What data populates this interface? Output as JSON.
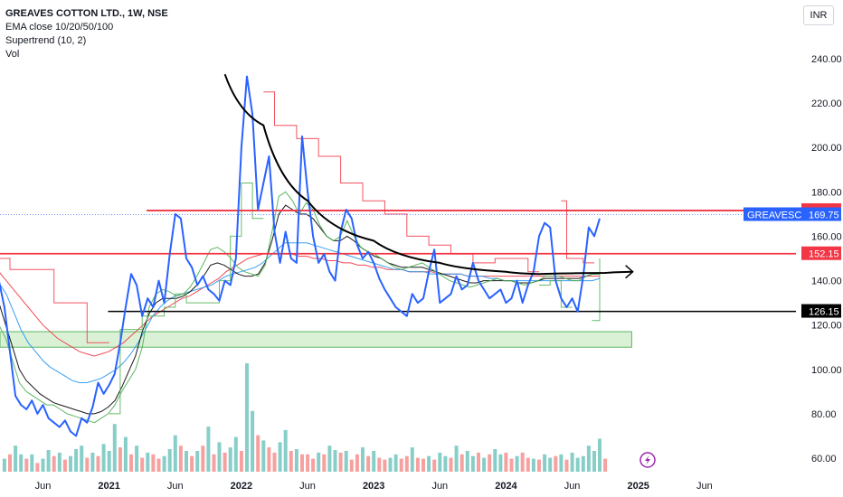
{
  "header": {
    "title": "GREAVES COTTON LTD., 1W, NSE",
    "indicators": [
      "EMA close 10/20/50/100",
      "Supertrend (10, 2)",
      "Vol"
    ],
    "currency": "INR"
  },
  "colors": {
    "price": "#2962ff",
    "ema10": "#4caf50",
    "ema20": "#000000",
    "ema50": "#2196f3",
    "ema100": "#f23645",
    "supertrend_up": "#4caf50",
    "supertrend_down": "#f23645",
    "resistance": "#f23645",
    "support": "#000000",
    "zone_fill": "#d7f0d2",
    "zone_stroke": "#4caf50",
    "vol_up": "#26a69a",
    "vol_down": "#ef5350",
    "symbol_tag": "#2962ff"
  },
  "chart_data": {
    "type": "line",
    "title": "GREAVES COTTON LTD., 1W, NSE",
    "ylim": [
      55,
      248
    ],
    "y_ticks": [
      60,
      80,
      100,
      120,
      140,
      160,
      180,
      200,
      220,
      240
    ],
    "y_tick_labels": [
      "60.00",
      "80.00",
      "100.00",
      "120.00",
      "140.00",
      "160.00",
      "180.00",
      "200.00",
      "220.00",
      "240.00"
    ],
    "x_tick_labels": [
      "Jun",
      "2021",
      "Jun",
      "2022",
      "Jun",
      "2023",
      "Jun",
      "2024",
      "Jun",
      "2025",
      "Jun"
    ],
    "x_tick_bold": [
      false,
      true,
      false,
      true,
      false,
      true,
      false,
      true,
      false,
      true,
      false
    ],
    "x_tick_index": [
      0,
      6,
      12,
      18,
      24,
      30,
      36,
      42,
      48,
      54,
      60
    ],
    "x_index_range": [
      -3.9,
      68.3
    ],
    "price_series": {
      "name": "GREAVESCOT",
      "x": [
        -4,
        -3.5,
        -3,
        -2.5,
        -2,
        -1.5,
        -1,
        -0.5,
        0,
        0.5,
        1,
        1.5,
        2,
        2.5,
        3,
        3.5,
        4,
        4.5,
        5,
        5.5,
        6,
        6.5,
        7,
        7.5,
        8,
        8.5,
        9,
        9.5,
        10,
        10.5,
        11,
        11.5,
        12,
        12.5,
        13,
        13.5,
        14,
        14.5,
        15,
        15.5,
        16,
        16.5,
        17,
        17.5,
        18,
        18.5,
        19,
        19.5,
        20,
        20.5,
        21,
        21.5,
        22,
        22.5,
        23,
        23.5,
        24,
        24.5,
        25,
        25.5,
        26,
        26.5,
        27,
        27.5,
        28,
        28.5,
        29,
        29.5,
        30,
        30.5,
        31,
        31.5,
        32,
        32.5,
        33,
        33.5,
        34,
        34.5,
        35,
        35.5,
        36,
        36.5,
        37,
        37.5,
        38,
        38.5,
        39,
        39.5,
        40,
        40.5,
        41,
        41.5,
        42,
        42.5,
        43,
        43.5,
        44,
        44.5,
        45,
        45.5,
        46,
        46.5,
        47,
        47.5,
        48,
        48.5,
        49,
        49.5,
        50,
        50.5
      ],
      "values": [
        140,
        128,
        108,
        88,
        84,
        82,
        86,
        80,
        84,
        78,
        76,
        74,
        77,
        72,
        70,
        78,
        76,
        83,
        94,
        89,
        93,
        98,
        112,
        128,
        143,
        138,
        124,
        132,
        128,
        140,
        130,
        152,
        170,
        168,
        150,
        146,
        138,
        142,
        136,
        134,
        131,
        140,
        138,
        150,
        200,
        232,
        215,
        172,
        184,
        196,
        162,
        148,
        162,
        150,
        148,
        205,
        180,
        160,
        148,
        152,
        144,
        140,
        162,
        172,
        168,
        156,
        150,
        153,
        148,
        141,
        136,
        132,
        128,
        126,
        124,
        134,
        130,
        132,
        144,
        154,
        130,
        132,
        134,
        142,
        136,
        138,
        148,
        140,
        136,
        132,
        134,
        136,
        130,
        132,
        140,
        130,
        138,
        144,
        160,
        166,
        164,
        140,
        132,
        128,
        132,
        126,
        142,
        164,
        160,
        168
      ],
      "last_value": 169.75
    },
    "ema10": [
      120,
      114,
      104,
      94,
      90,
      88,
      86,
      84,
      84,
      82,
      80,
      79,
      78,
      77,
      76,
      78,
      80,
      84,
      90,
      95,
      100,
      110,
      128,
      134,
      136,
      135,
      133,
      134,
      137,
      142,
      148,
      154,
      155,
      153,
      150,
      146,
      144,
      143,
      142,
      147,
      162,
      178,
      180,
      176,
      170,
      175,
      172,
      165,
      160,
      158,
      160,
      167,
      160,
      155,
      153,
      152,
      150,
      148,
      146,
      145,
      146,
      147,
      148,
      146,
      144,
      142,
      140,
      139,
      138,
      137,
      138,
      139,
      140,
      141,
      140,
      140,
      139,
      138,
      139,
      140,
      142,
      142,
      142,
      141,
      140,
      140,
      142,
      143,
      143
    ],
    "ema20": [
      130,
      120,
      110,
      100,
      95,
      92,
      89,
      87,
      85,
      84,
      83,
      82,
      81,
      80,
      80,
      81,
      83,
      86,
      92,
      99,
      106,
      117,
      125,
      130,
      132,
      132,
      132,
      133,
      135,
      138,
      142,
      147,
      148,
      147,
      145,
      143,
      142,
      142,
      143,
      148,
      158,
      170,
      174,
      172,
      170,
      170,
      168,
      164,
      160,
      158,
      158,
      160,
      158,
      155,
      153,
      151,
      150,
      148,
      147,
      146,
      146,
      146,
      146,
      145,
      144,
      143,
      142,
      141,
      140,
      139,
      139,
      140,
      140,
      140,
      140,
      140,
      139,
      139,
      139,
      140,
      141,
      141,
      141,
      141,
      141,
      141,
      142,
      143,
      143
    ],
    "ema50": [
      139,
      134,
      126,
      118,
      112,
      108,
      104,
      101,
      99,
      97,
      95,
      94,
      94,
      95,
      96,
      98,
      100,
      103,
      107,
      112,
      118,
      124,
      128,
      131,
      133,
      134,
      135,
      136,
      137,
      138,
      140,
      142,
      143,
      144,
      145,
      146,
      148,
      151,
      154,
      157,
      157,
      157,
      157,
      156,
      155,
      154,
      153,
      152,
      151,
      150,
      149,
      148,
      147,
      146,
      145,
      145,
      144,
      144,
      144,
      143,
      143,
      143,
      143,
      143,
      142,
      142,
      142,
      141,
      141,
      140,
      140,
      140,
      140,
      140,
      140,
      140,
      140,
      140,
      140,
      140,
      140,
      140,
      141
    ],
    "ema100": [
      144,
      140,
      136,
      132,
      128,
      124,
      120,
      117,
      114,
      112,
      110,
      108,
      107,
      106,
      107,
      108,
      110,
      112,
      115,
      118,
      121,
      124,
      126,
      128,
      130,
      132,
      133,
      135,
      137,
      139,
      141,
      144,
      146,
      148,
      150,
      151,
      152,
      152,
      152,
      152,
      152,
      151,
      151,
      150,
      150,
      149,
      149,
      148,
      148,
      147,
      147,
      146,
      146,
      145,
      145,
      145,
      144,
      144,
      144,
      144,
      143,
      143,
      143,
      143,
      142,
      142,
      142,
      142,
      142,
      142,
      142,
      142,
      142,
      142,
      142,
      142,
      142,
      142,
      142,
      142,
      142,
      142,
      142
    ],
    "supertrend": [
      {
        "direction": "down",
        "points": [
          [
            -4,
            150
          ],
          [
            -3,
            150
          ],
          [
            -3,
            145
          ],
          [
            1,
            145
          ],
          [
            1,
            130
          ],
          [
            4,
            130
          ],
          [
            4,
            112
          ],
          [
            6,
            112
          ]
        ]
      },
      {
        "direction": "up",
        "points": [
          [
            6,
            80
          ],
          [
            7,
            80
          ],
          [
            7,
            118
          ],
          [
            9,
            118
          ],
          [
            9,
            124
          ],
          [
            11,
            124
          ],
          [
            11,
            128
          ],
          [
            12,
            128
          ],
          [
            12,
            134
          ],
          [
            13,
            134
          ],
          [
            13,
            130
          ],
          [
            16,
            130
          ],
          [
            16,
            140
          ],
          [
            17,
            140
          ],
          [
            17,
            160
          ],
          [
            18,
            160
          ],
          [
            18,
            184
          ],
          [
            19,
            184
          ],
          [
            19,
            168
          ],
          [
            20,
            168
          ]
        ]
      },
      {
        "direction": "down",
        "points": [
          [
            20,
            225
          ],
          [
            21,
            225
          ],
          [
            21,
            210
          ],
          [
            23,
            210
          ],
          [
            23,
            204
          ],
          [
            25,
            204
          ],
          [
            25,
            196
          ],
          [
            27,
            196
          ],
          [
            27,
            184
          ],
          [
            29,
            184
          ],
          [
            29,
            176
          ],
          [
            31,
            176
          ],
          [
            31,
            170
          ],
          [
            33,
            170
          ],
          [
            33,
            160
          ],
          [
            35,
            160
          ],
          [
            35,
            156
          ],
          [
            37,
            156
          ],
          [
            37,
            152
          ],
          [
            39,
            152
          ],
          [
            39,
            148
          ],
          [
            41,
            148
          ],
          [
            41,
            150
          ],
          [
            44,
            150
          ],
          [
            44,
            144
          ],
          [
            45,
            144
          ]
        ]
      },
      {
        "direction": "up",
        "points": [
          [
            45,
            138
          ],
          [
            46,
            138
          ],
          [
            46,
            140
          ],
          [
            47,
            140
          ],
          [
            47,
            128
          ],
          [
            48,
            128
          ]
        ]
      },
      {
        "direction": "down",
        "points": [
          [
            47,
            176
          ],
          [
            47.5,
            176
          ],
          [
            47.5,
            150
          ],
          [
            49,
            150
          ],
          [
            49,
            148
          ],
          [
            50,
            148
          ]
        ]
      },
      {
        "direction": "up",
        "points": [
          [
            49.8,
            122
          ],
          [
            50.5,
            122
          ],
          [
            50.5,
            150
          ]
        ]
      }
    ],
    "trendline": {
      "points": [
        [
          16.5,
          233
        ],
        [
          20,
          210
        ],
        [
          24,
          176
        ],
        [
          30,
          158
        ],
        [
          36,
          148
        ],
        [
          42,
          144
        ],
        [
          45,
          143
        ],
        [
          51,
          143.5
        ],
        [
          53.5,
          144
        ]
      ]
    },
    "support_polyline": [
      [
        42,
        144
      ],
      [
        53.5,
        144
      ]
    ],
    "levels": [
      {
        "name": "resistance",
        "value": 171.6,
        "label": "171.60",
        "x_start": 9.4
      },
      {
        "name": "mid",
        "value": 152.15,
        "label": "152.15",
        "x_start": -3.9
      },
      {
        "name": "support",
        "value": 126.15,
        "label": "126.15",
        "x_start": 5.9
      }
    ],
    "zone": {
      "low": 110,
      "high": 117,
      "x_start": -3.9,
      "x_end": 53.4
    },
    "volume": {
      "x_start": -3.5,
      "x_step": 0.5,
      "values": [
        1.5,
        2,
        3,
        2,
        1.5,
        2,
        1,
        1.5,
        2.5,
        1.8,
        2.2,
        1.4,
        1.8,
        2.6,
        3,
        1.6,
        2.2,
        1.8,
        3.2,
        2.4,
        5.5,
        2.8,
        4,
        2,
        3,
        1.6,
        2.2,
        2,
        1.5,
        1.8,
        2.6,
        4.2,
        3,
        2.4,
        1.8,
        2.4,
        3,
        5.2,
        2,
        3.4,
        2.2,
        2.8,
        4,
        2.4,
        12.5,
        7,
        4.2,
        3.6,
        2.8,
        2.2,
        3.4,
        4.8,
        2.4,
        2.6,
        2,
        2,
        1.5,
        2.2,
        2,
        3,
        2.5,
        2.2,
        2.4,
        1.4,
        2,
        2.8,
        1.8,
        2.4,
        1.6,
        1.4,
        1.6,
        2,
        1.5,
        1.8,
        2.8,
        1.6,
        1.5,
        1.8,
        1.4,
        2.2,
        1.8,
        1.6,
        3,
        2,
        2.4,
        1.8,
        2.2,
        1.6,
        2,
        2.6,
        2,
        2.2,
        1.5,
        1.8,
        2.2,
        1.6,
        1.5,
        1.4,
        2,
        1.6,
        1.8,
        2,
        1.4,
        2.2,
        1.6,
        1.8,
        3,
        2.4,
        3.8,
        1.5
      ],
      "up": [
        1,
        0,
        1,
        1,
        0,
        1,
        0,
        1,
        1,
        0,
        1,
        0,
        1,
        1,
        1,
        0,
        1,
        0,
        1,
        1,
        1,
        0,
        1,
        0,
        1,
        0,
        1,
        0,
        0,
        1,
        1,
        1,
        0,
        1,
        0,
        1,
        0,
        1,
        0,
        1,
        0,
        1,
        1,
        0,
        1,
        1,
        0,
        1,
        0,
        0,
        1,
        1,
        0,
        1,
        0,
        0,
        0,
        1,
        0,
        1,
        1,
        0,
        1,
        0,
        0,
        1,
        0,
        1,
        0,
        0,
        1,
        1,
        0,
        0,
        1,
        0,
        0,
        1,
        0,
        1,
        1,
        0,
        1,
        0,
        1,
        1,
        0,
        1,
        0,
        1,
        1,
        0,
        0,
        1,
        0,
        0,
        1,
        0,
        1,
        1,
        0,
        1,
        0,
        1,
        1,
        1,
        1,
        1,
        1,
        0
      ]
    }
  },
  "price_tags": [
    {
      "label": "171.60",
      "color": "#f23645",
      "value": 171.6
    },
    {
      "label": "GREAVESCOT",
      "value_label": "169.75",
      "color": "#2962ff",
      "value": 169.75
    },
    {
      "label": "152.15",
      "color": "#f23645",
      "value": 152.15
    },
    {
      "label": "126.15",
      "color": "#000000",
      "value": 126.15
    }
  ],
  "lightning_icon": "lightning-icon"
}
